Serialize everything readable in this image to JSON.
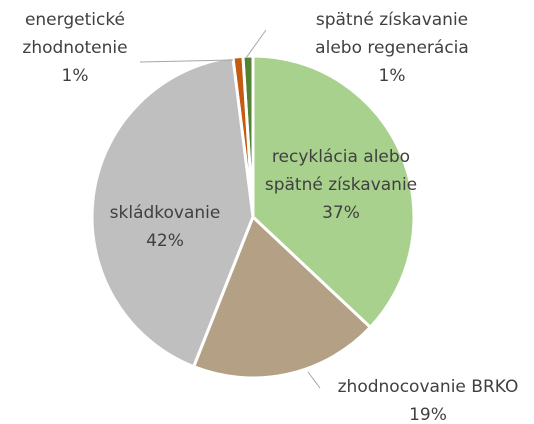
{
  "chart_data": {
    "type": "pie",
    "categories": [
      "recyklácia alebo spätné získavanie",
      "zhodnocovanie BRKO",
      "skládkovanie",
      "energetické zhodnotenie",
      "spätné získavanie alebo regenerácia"
    ],
    "values": [
      37,
      19,
      42,
      1,
      1
    ],
    "value_labels": [
      "37%",
      "19%",
      "42%",
      "1%",
      "1%"
    ],
    "colors": [
      "#a9d18e",
      "#b4a084",
      "#bfbfbf",
      "#c55a11",
      "#548235"
    ]
  }
}
